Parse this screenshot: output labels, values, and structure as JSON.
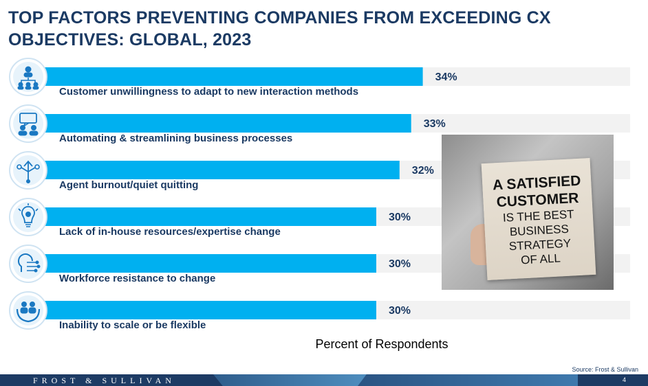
{
  "title": "TOP FACTORS PREVENTING COMPANIES FROM EXCEEDING CX OBJECTIVES: GLOBAL, 2023",
  "chart_data": {
    "type": "bar",
    "orientation": "horizontal",
    "categories": [
      "Customer unwillingness to adapt to new interaction methods",
      "Automating & streamlining business processes",
      "Agent burnout/quiet quitting",
      "Lack of in-house resources/expertise  change",
      "Workforce resistance to change",
      "Inability to scale or be flexible"
    ],
    "values": [
      34,
      33,
      32,
      30,
      30,
      30
    ],
    "value_labels": [
      "34%",
      "33%",
      "32%",
      "30%",
      "30%",
      "30%"
    ],
    "xlabel": "Percent of Respondents",
    "grid": false,
    "legend": "none",
    "colors": {
      "bar": "#00b0f0",
      "track": "#f2f2f2",
      "text": "#1b3a63"
    }
  },
  "icons": [
    "hierarchy-people-icon",
    "chat-group-icon",
    "branching-arrows-icon",
    "lightbulb-gear-icon",
    "ai-circuit-icon",
    "hands-people-icon"
  ],
  "promo_card": {
    "lines": [
      "A SATISFIED",
      "CUSTOMER",
      "IS THE BEST",
      "BUSINESS",
      "STRATEGY",
      "OF ALL"
    ]
  },
  "source": "Source: Frost & Sullivan",
  "footer": {
    "brand": "FROST & SULLIVAN",
    "page": "4"
  }
}
